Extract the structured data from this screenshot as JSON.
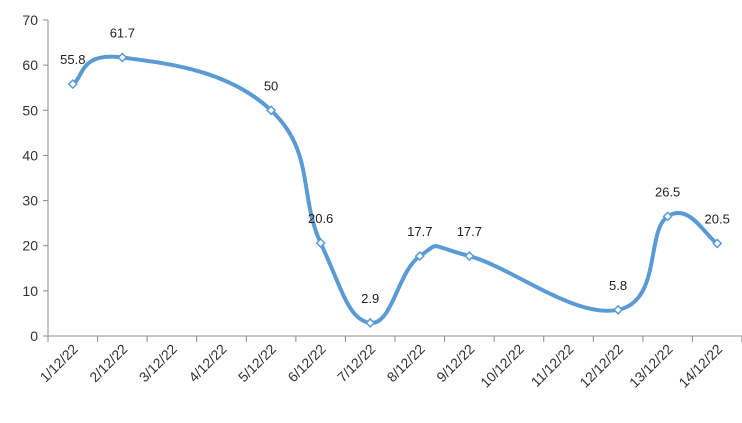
{
  "chart_data": {
    "type": "line",
    "title": "",
    "xlabel": "",
    "ylabel": "",
    "categories": [
      "1/12/22",
      "2/12/22",
      "3/12/22",
      "4/12/22",
      "5/12/22",
      "6/12/22",
      "7/12/22",
      "8/12/22",
      "9/12/22",
      "10/12/22",
      "11/12/22",
      "12/12/22",
      "13/12/22",
      "14/12/22"
    ],
    "series": [
      {
        "values": [
          55.8,
          61.7,
          null,
          null,
          50,
          20.6,
          2.9,
          17.7,
          17.7,
          null,
          null,
          5.8,
          26.5,
          20.5
        ],
        "labels": [
          "55.8",
          "61.7",
          "",
          "",
          "50",
          "20.6",
          "2.9",
          "17.7",
          "17.7",
          "",
          "",
          "5.8",
          "26.5",
          "20.5"
        ],
        "color": "#5b9bd5",
        "smooth": true,
        "marker": "diamond-open"
      }
    ],
    "ylim": [
      0,
      70
    ],
    "yticks": [
      0,
      10,
      20,
      30,
      40,
      50,
      60,
      70
    ],
    "ytick_labels": [
      "0",
      "10",
      "20",
      "30",
      "40",
      "50",
      "60",
      "70"
    ],
    "grid": false,
    "legend": "none"
  }
}
